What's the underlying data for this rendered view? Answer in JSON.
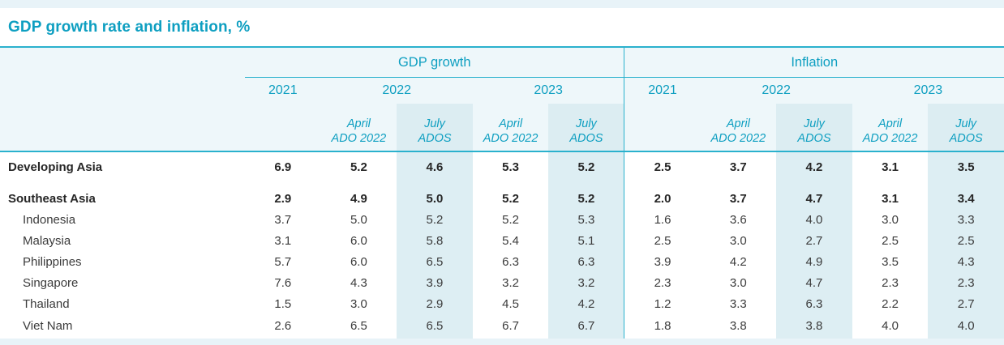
{
  "title": "GDP growth rate and inflation, %",
  "colors": {
    "accent_text": "#0e9fc1",
    "accent_line": "#2ab1cd",
    "header_bg": "#eef7fa",
    "highlight_column": "#ddeef3",
    "strip": "#e8f3f8",
    "body_text": "#3b3b3b"
  },
  "chart_data": {
    "type": "table",
    "title": "GDP growth rate and inflation, %",
    "unit": "%",
    "column_groups": [
      "GDP growth",
      "Inflation"
    ],
    "years": [
      "2021",
      "2022",
      "2023"
    ],
    "sub_april": [
      "April",
      "ADO 2022"
    ],
    "sub_july": [
      "July",
      "ADOS"
    ],
    "subcolumns_per_group": [
      "2021",
      "April ADO 2022",
      "July ADOS",
      "April ADO 2022",
      "July ADOS"
    ],
    "highlighted_columns": [
      "July ADOS 2022",
      "July ADOS 2023"
    ],
    "rows": [
      {
        "label": "Developing Asia",
        "bold": true,
        "gdp": [
          "6.9",
          "5.2",
          "4.6",
          "5.3",
          "5.2"
        ],
        "infl": [
          "2.5",
          "3.7",
          "4.2",
          "3.1",
          "3.5"
        ]
      },
      {
        "label": "Southeast Asia",
        "bold": true,
        "gdp": [
          "2.9",
          "4.9",
          "5.0",
          "5.2",
          "5.2"
        ],
        "infl": [
          "2.0",
          "3.7",
          "4.7",
          "3.1",
          "3.4"
        ]
      },
      {
        "label": "Indonesia",
        "bold": false,
        "gdp": [
          "3.7",
          "5.0",
          "5.2",
          "5.2",
          "5.3"
        ],
        "infl": [
          "1.6",
          "3.6",
          "4.0",
          "3.0",
          "3.3"
        ]
      },
      {
        "label": "Malaysia",
        "bold": false,
        "gdp": [
          "3.1",
          "6.0",
          "5.8",
          "5.4",
          "5.1"
        ],
        "infl": [
          "2.5",
          "3.0",
          "2.7",
          "2.5",
          "2.5"
        ]
      },
      {
        "label": "Philippines",
        "bold": false,
        "gdp": [
          "5.7",
          "6.0",
          "6.5",
          "6.3",
          "6.3"
        ],
        "infl": [
          "3.9",
          "4.2",
          "4.9",
          "3.5",
          "4.3"
        ]
      },
      {
        "label": "Singapore",
        "bold": false,
        "gdp": [
          "7.6",
          "4.3",
          "3.9",
          "3.2",
          "3.2"
        ],
        "infl": [
          "2.3",
          "3.0",
          "4.7",
          "2.3",
          "2.3"
        ]
      },
      {
        "label": "Thailand",
        "bold": false,
        "gdp": [
          "1.5",
          "3.0",
          "2.9",
          "4.5",
          "4.2"
        ],
        "infl": [
          "1.2",
          "3.3",
          "6.3",
          "2.2",
          "2.7"
        ]
      },
      {
        "label": "Viet Nam",
        "bold": false,
        "gdp": [
          "2.6",
          "6.5",
          "6.5",
          "6.7",
          "6.7"
        ],
        "infl": [
          "1.8",
          "3.8",
          "3.8",
          "4.0",
          "4.0"
        ]
      }
    ]
  }
}
